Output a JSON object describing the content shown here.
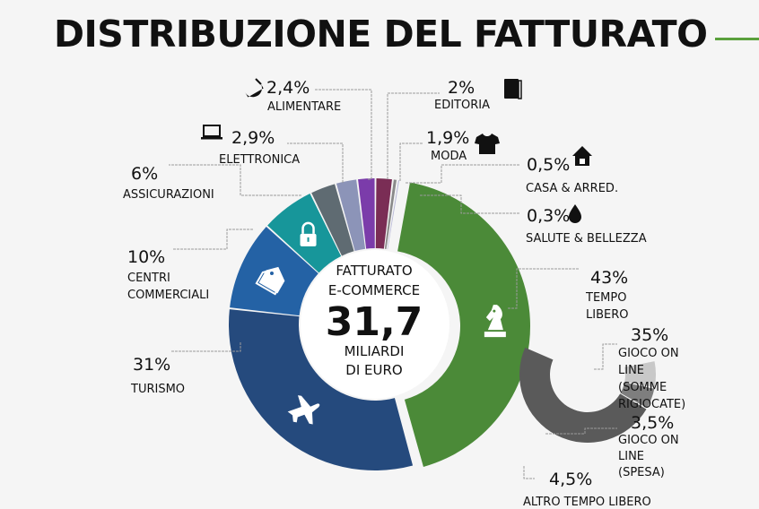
{
  "title": "DISTRIBUZIONE DEL FATTURATO",
  "colors": {
    "title_rule": "#5aa03c",
    "tempo_libero": "#4b8a38",
    "turismo": "#254a7d",
    "centri_commerciali": "#2462a5",
    "assicurazioni": "#17969a",
    "elettronica": "#5f6b72",
    "alimentare": "#8c94b8",
    "editoria": "#7b3caa",
    "moda": "#7a2d55",
    "casa": "#8a8a8a",
    "salute": "#b7b7d6",
    "gioco_somme": "#5a5a5a",
    "gioco_spesa": "#7e7e7e",
    "altro": "#c8c8c8"
  },
  "chart_data": [
    {
      "type": "pie",
      "variant": "donut",
      "center_label": {
        "line1": "FATTURATO",
        "line2": "E-COMMERCE",
        "value": "31,7",
        "line3": "MILIARDI",
        "line4": "DI EURO"
      },
      "slices": [
        {
          "key": "tempo_libero",
          "value_label": "43%",
          "label_lines": [
            "TEMPO",
            "LIBERO"
          ],
          "value": 43,
          "icon": "chess-knight-icon"
        },
        {
          "key": "turismo",
          "value_label": "31%",
          "label_lines": [
            "TURISMO"
          ],
          "value": 31,
          "icon": "airplane-icon"
        },
        {
          "key": "centri_commerciali",
          "value_label": "10%",
          "label_lines": [
            "CENTRI",
            "COMMERCIALI"
          ],
          "value": 10,
          "icon": "price-tags-icon"
        },
        {
          "key": "assicurazioni",
          "value_label": "6%",
          "label_lines": [
            "ASSICURAZIONI"
          ],
          "value": 6,
          "icon": "padlock-icon"
        },
        {
          "key": "elettronica",
          "value_label": "2,9%",
          "label_lines": [
            "ELETTRONICA"
          ],
          "value": 2.9,
          "icon": "laptop-icon"
        },
        {
          "key": "alimentare",
          "value_label": "2,4%",
          "label_lines": [
            "ALIMENTARE"
          ],
          "value": 2.4,
          "icon": "food-icon"
        },
        {
          "key": "editoria",
          "value_label": "2%",
          "label_lines": [
            "EDITORIA"
          ],
          "value": 2,
          "icon": "book-icon"
        },
        {
          "key": "moda",
          "value_label": "1,9%",
          "label_lines": [
            "MODA"
          ],
          "value": 1.9,
          "icon": "tshirt-icon"
        },
        {
          "key": "casa",
          "value_label": "0,5%",
          "label_lines": [
            "CASA & ARRED."
          ],
          "value": 0.5,
          "icon": "house-icon"
        },
        {
          "key": "salute",
          "value_label": "0,3%",
          "label_lines": [
            "SALUTE & BELLEZZA"
          ],
          "value": 0.3,
          "icon": "drop-icon"
        }
      ]
    },
    {
      "type": "pie",
      "variant": "partial-arc-breakdown",
      "parent": "TEMPO LIBERO",
      "slices": [
        {
          "key": "gioco_somme",
          "value_label": "35%",
          "label_lines": [
            "GIOCO ON",
            "LINE",
            "(SOMME",
            "RIGIOCATE)"
          ],
          "value": 35
        },
        {
          "key": "gioco_spesa",
          "value_label": "3,5%",
          "label_lines": [
            "GIOCO ON",
            "LINE",
            "(SPESA)"
          ],
          "value": 3.5
        },
        {
          "key": "altro",
          "value_label": "4,5%",
          "label_lines": [
            "ALTRO TEMPO LIBERO"
          ],
          "value": 4.5
        }
      ]
    }
  ]
}
